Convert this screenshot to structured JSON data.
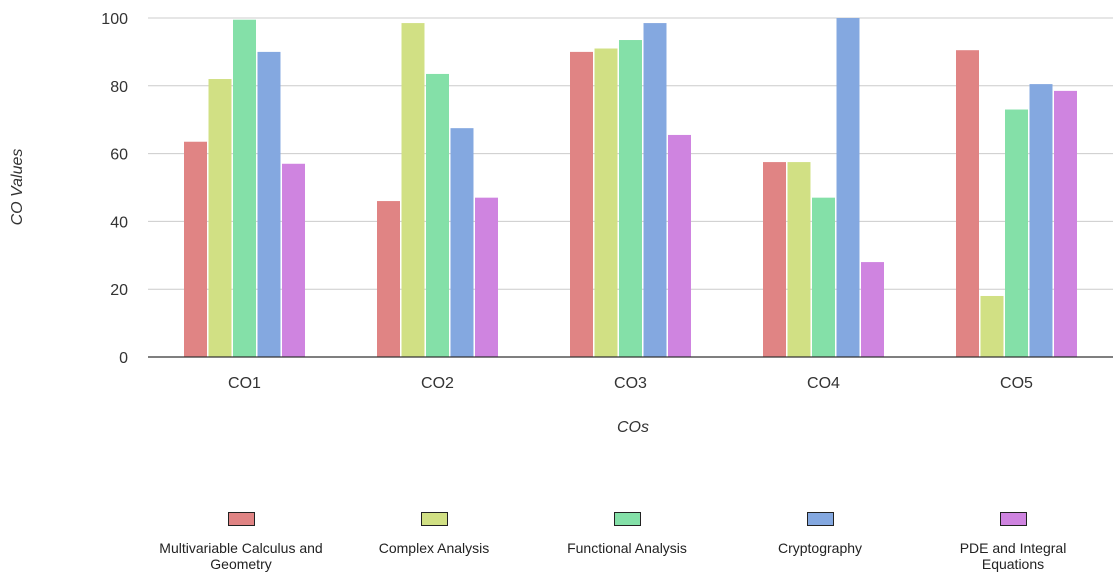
{
  "chart_data": {
    "type": "bar",
    "title": "",
    "xlabel": "COs",
    "ylabel": "CO Values",
    "categories": [
      "CO1",
      "CO2",
      "CO3",
      "CO4",
      "CO5"
    ],
    "yticks": [
      "0",
      "20",
      "40",
      "60",
      "80",
      "100"
    ],
    "ylim": [
      0,
      100
    ],
    "grid": true,
    "legend_position": "bottom",
    "series": [
      {
        "name": "Multivariable Calculus and Geometry",
        "color": "#e08484",
        "values": [
          63.5,
          46,
          90,
          57.5,
          90.5
        ]
      },
      {
        "name": "Complex Analysis",
        "color": "#d1e084",
        "values": [
          82,
          98.5,
          91,
          57.5,
          18
        ]
      },
      {
        "name": "Functional Analysis",
        "color": "#84e0a8",
        "values": [
          99.5,
          83.5,
          93.5,
          47,
          73
        ]
      },
      {
        "name": "Cryptography",
        "color": "#84a8e0",
        "values": [
          90,
          67.5,
          98.5,
          100,
          80.5
        ]
      },
      {
        "name": "PDE and Integral Equations",
        "color": "#cf84e0",
        "values": [
          57,
          47,
          65.5,
          28,
          78.5
        ]
      }
    ]
  }
}
